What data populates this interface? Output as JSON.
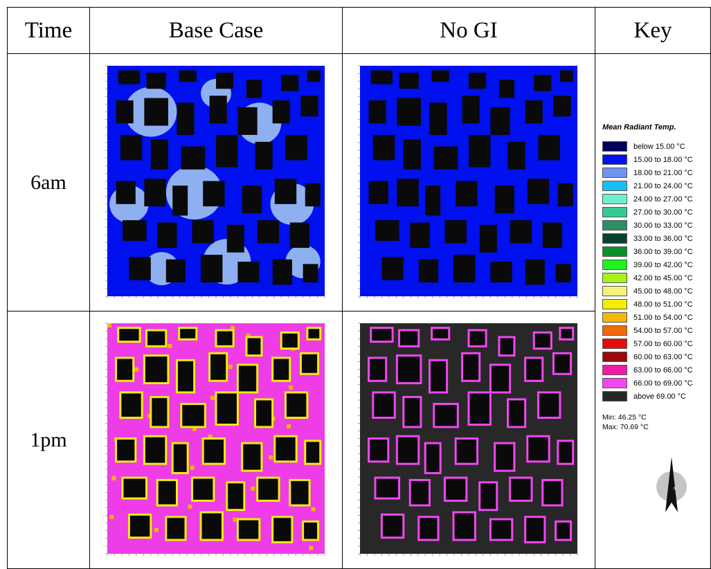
{
  "headers": {
    "time": "Time",
    "base_case": "Base Case",
    "no_gi": "No GI",
    "key": "Key"
  },
  "rows": [
    {
      "time": "6am"
    },
    {
      "time": "1pm"
    }
  ],
  "key": {
    "title": "Mean Radiant Temp.",
    "items": [
      {
        "label": "below 15.00 °C",
        "color": "#00005a"
      },
      {
        "label": "15.00 to 18.00 °C",
        "color": "#0010ee"
      },
      {
        "label": "18.00 to 21.00 °C",
        "color": "#6f93f0"
      },
      {
        "label": "21.00 to 24.00 °C",
        "color": "#19bff0"
      },
      {
        "label": "24.00 to 27.00 °C",
        "color": "#6ff0cc"
      },
      {
        "label": "27.00 to 30.00 °C",
        "color": "#33c993"
      },
      {
        "label": "30.00 to 33.00 °C",
        "color": "#2e8f63"
      },
      {
        "label": "33.00 to 36.00 °C",
        "color": "#0a4030"
      },
      {
        "label": "36.00 to 39.00 °C",
        "color": "#08932a"
      },
      {
        "label": "39.00 to 42.00 °C",
        "color": "#1ff21f"
      },
      {
        "label": "42.00 to 45.00 °C",
        "color": "#a6f21a"
      },
      {
        "label": "45.00 to 48.00 °C",
        "color": "#f2f27a"
      },
      {
        "label": "48.00 to 51.00 °C",
        "color": "#f2ee0a"
      },
      {
        "label": "51.00 to 54.00 °C",
        "color": "#f2b70a"
      },
      {
        "label": "54.00 to 57.00 °C",
        "color": "#f26a0a"
      },
      {
        "label": "57.00 to 60.00 °C",
        "color": "#e60c0c"
      },
      {
        "label": "60.00 to 63.00 °C",
        "color": "#990a0a"
      },
      {
        "label": "63.00 to 66.00 °C",
        "color": "#f21aa5"
      },
      {
        "label": "66.00 to 69.00 °C",
        "color": "#f246f2"
      },
      {
        "label": "above 69.00 °C",
        "color": "#282828"
      }
    ],
    "min": "Min: 46.25 °C",
    "max": "Max: 70.69 °C",
    "north": "N"
  },
  "map_colors": {
    "building": "#0a0a0a",
    "am_base_primary": "#0010ee",
    "am_base_secondary": "#8fb0f0",
    "am_nogi_primary": "#0010ee",
    "pm_base_primary": "#ee3ce6",
    "pm_base_hot": "#f2b70a",
    "pm_nogi_background": "#282828",
    "pm_nogi_edge": "#f246f2",
    "pm_edge_hot": "#f2ee0a"
  }
}
